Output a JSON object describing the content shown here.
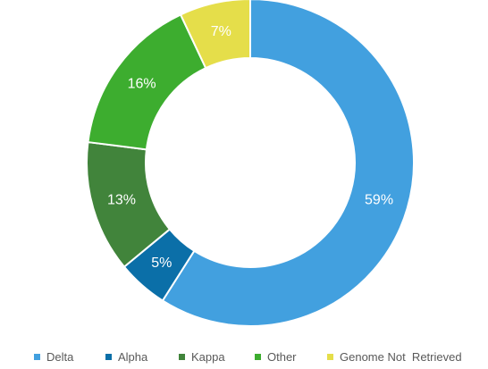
{
  "chart_data": {
    "type": "pie",
    "donut": true,
    "categories": [
      "Delta",
      "Alpha",
      "Kappa",
      "Other",
      "Genome Not  Retrieved"
    ],
    "values": [
      59,
      5,
      13,
      16,
      7
    ],
    "labels": [
      "59%",
      "5%",
      "13%",
      "16%",
      "7%"
    ],
    "colors": [
      "#42A0DF",
      "#0B6FA8",
      "#41843B",
      "#3DAD2F",
      "#E5DE4A"
    ],
    "start": "top, clockwise",
    "legend": "bottom"
  }
}
